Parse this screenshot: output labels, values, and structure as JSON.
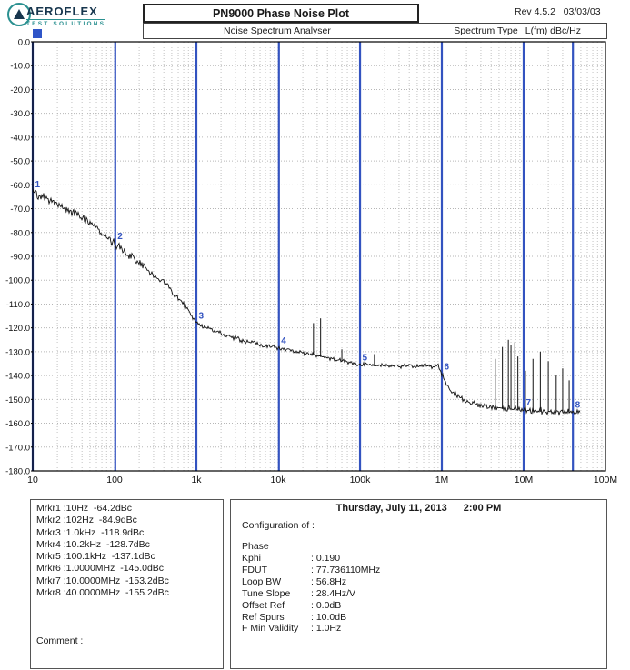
{
  "header": {
    "brand": "AEROFLEX",
    "brand_tagline": "TEST SOLUTIONS",
    "title": "PN9000 Phase Noise Plot",
    "revision": "Rev 4.5.2   03/03/03",
    "analyser_label": "Noise Spectrum Analyser",
    "spectrum_type_label": "Spectrum Type",
    "spectrum_type_value": "L(fm) dBc/Hz"
  },
  "marker_box": {
    "rows": [
      "Mrkr1 :10Hz  -64.2dBc",
      "Mrkr2 :102Hz  -84.9dBc",
      "Mrkr3 :1.0kHz  -118.9dBc",
      "Mrkr4 :10.2kHz  -128.7dBc",
      "Mrkr5 :100.1kHz  -137.1dBc",
      "Mrkr6 :1.0000MHz  -145.0dBc",
      "Mrkr7 :10.0000MHz  -153.2dBc",
      "Mrkr8 :40.0000MHz  -155.2dBc"
    ],
    "comment_label": "Comment :"
  },
  "config_box": {
    "date": "Thursday, July 11, 2013",
    "time": "2:00 PM",
    "heading": "Configuration of :",
    "subject": "Phase",
    "items": [
      {
        "label": "Kphi",
        "value": ": 0.190"
      },
      {
        "label": "FDUT",
        "value": ": 77.736110MHz"
      },
      {
        "label": "Loop BW",
        "value": ": 56.8Hz"
      },
      {
        "label": "Tune Slope",
        "value": ": 28.4Hz/V"
      },
      {
        "label": "Offset Ref",
        "value": ": 0.0dB"
      },
      {
        "label": "Ref Spurs",
        "value": ": 10.0dB"
      },
      {
        "label": "F Min Validity",
        "value": ": 1.0Hz"
      }
    ]
  },
  "chart_data": {
    "type": "line",
    "title": "PN9000 Phase Noise Plot",
    "x_scale": "log",
    "x_range_hz": [
      10,
      100000000
    ],
    "xtick_values": [
      10,
      100,
      1000,
      10000,
      100000,
      1000000,
      10000000,
      100000000
    ],
    "xtick_labels": [
      "10",
      "100",
      "1k",
      "10k",
      "100k",
      "1M",
      "10M",
      "100M"
    ],
    "ylim": [
      -180,
      0
    ],
    "ytick_step": 10,
    "ytick_labels": [
      "0.0",
      "-10.0",
      "-20.0",
      "-30.0",
      "-40.0",
      "-50.0",
      "-60.0",
      "-70.0",
      "-80.0",
      "-90.0",
      "-100.0",
      "-110.0",
      "-120.0",
      "-130.0",
      "-140.0",
      "-150.0",
      "-160.0",
      "-170.0",
      "-180.0"
    ],
    "unit": "dBc/Hz",
    "grid": true,
    "trace_color": "#111111",
    "marker_color": "#3353c0",
    "trace_end_hz": 50000000,
    "trace_anchors": [
      [
        10,
        -63
      ],
      [
        20,
        -68
      ],
      [
        50,
        -76
      ],
      [
        100,
        -84.5
      ],
      [
        200,
        -93
      ],
      [
        400,
        -101
      ],
      [
        700,
        -110
      ],
      [
        1000,
        -118
      ],
      [
        2000,
        -122.5
      ],
      [
        5000,
        -126.5
      ],
      [
        10000,
        -128.5
      ],
      [
        30000,
        -131.5
      ],
      [
        100000,
        -135.5
      ],
      [
        300000,
        -136
      ],
      [
        900000,
        -136
      ],
      [
        1050000,
        -141
      ],
      [
        1300000,
        -147
      ],
      [
        2000000,
        -151
      ],
      [
        3000000,
        -152.5
      ],
      [
        5000000,
        -153.5
      ],
      [
        10000000,
        -154.5
      ],
      [
        50000000,
        -155.5
      ]
    ],
    "noise_db": [
      [
        1,
        2.2
      ],
      [
        2,
        2.2
      ],
      [
        3,
        1.7
      ],
      [
        4,
        1.1
      ],
      [
        5.5,
        1.1
      ],
      [
        6.3,
        1.6
      ],
      [
        7.7,
        1.6
      ]
    ],
    "spurs": [
      [
        27000,
        -118
      ],
      [
        33000,
        -116
      ],
      [
        60000,
        -129
      ],
      [
        150000,
        -131
      ],
      [
        4500000,
        -133
      ],
      [
        5500000,
        -128
      ],
      [
        6500000,
        -125
      ],
      [
        7000000,
        -127
      ],
      [
        7800000,
        -126
      ],
      [
        8500000,
        -132
      ],
      [
        10500000,
        -138
      ],
      [
        13000000,
        -133
      ],
      [
        16000000,
        -130
      ],
      [
        20000000,
        -134
      ],
      [
        25000000,
        -140
      ],
      [
        30000000,
        -137
      ],
      [
        36000000,
        -142
      ]
    ],
    "markers": [
      {
        "n": "1",
        "f": 10,
        "level": -64.2
      },
      {
        "n": "2",
        "f": 102,
        "level": -84.9
      },
      {
        "n": "3",
        "f": 1000,
        "level": -118.9
      },
      {
        "n": "4",
        "f": 10200,
        "level": -128.7
      },
      {
        "n": "5",
        "f": 100100,
        "level": -137.1
      },
      {
        "n": "6",
        "f": 1000000,
        "level": -145.0
      },
      {
        "n": "7",
        "f": 10000000,
        "level": -153.2
      },
      {
        "n": "8",
        "f": 40000000,
        "level": -155.2
      }
    ]
  }
}
